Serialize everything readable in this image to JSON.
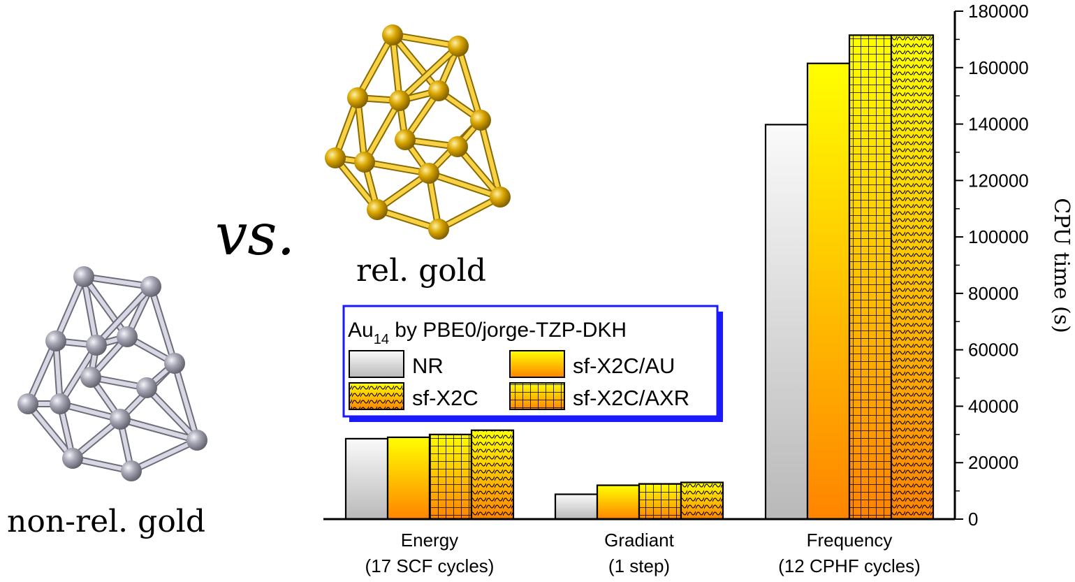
{
  "figure": {
    "vs_text": "vs.",
    "rel_label": "rel. gold",
    "nonrel_label": "non-rel. gold",
    "colors": {
      "gold_light": "#f7d244",
      "gold_dark": "#8a6a00",
      "silver_light": "#d8d8e4",
      "silver_dark": "#6c6c7a",
      "legend_border": "#1a1aff"
    }
  },
  "legend": {
    "title_main": "Au",
    "title_sub": "14",
    "title_rest": " by PBE0/jorge-TZP-DKH",
    "position": "upper-left"
  },
  "chart_data": {
    "type": "bar",
    "categories": [
      [
        "Energy",
        "(17 SCF cycles)"
      ],
      [
        "Gradiant",
        "(1 step)"
      ],
      [
        "Frequency",
        "(12 CPHF cycles)"
      ]
    ],
    "series": [
      {
        "name": "NR",
        "style": "gray-gradient",
        "values": [
          28500,
          8800,
          139800
        ]
      },
      {
        "name": "sf-X2C/AU",
        "style": "yellow-orange-gradient",
        "values": [
          29000,
          12000,
          161500
        ]
      },
      {
        "name": "sf-X2C/AXR",
        "style": "yellow-orange-gradient-grid",
        "values": [
          30000,
          12500,
          171500
        ]
      },
      {
        "name": "sf-X2C",
        "style": "yellow-orange-gradient-wave",
        "values": [
          31500,
          13000,
          171500
        ]
      }
    ],
    "ylabel": "CPU time (s)",
    "ylim": [
      0,
      180000
    ],
    "yticks": [
      0,
      20000,
      40000,
      60000,
      80000,
      100000,
      120000,
      140000,
      160000,
      180000
    ],
    "y_axis_side": "right",
    "grid": false
  }
}
